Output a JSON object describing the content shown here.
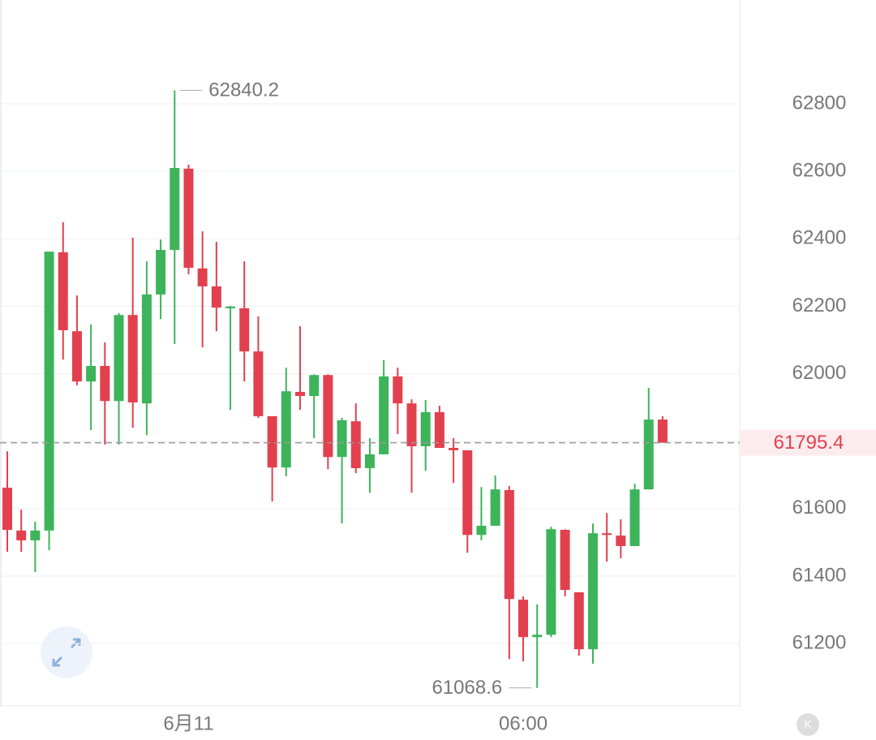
{
  "chart_data": {
    "type": "candlestick",
    "categories": [
      null,
      null,
      null,
      null,
      null,
      null,
      null,
      null,
      null,
      null,
      null,
      null,
      null,
      "6月11",
      null,
      null,
      null,
      null,
      null,
      null,
      null,
      null,
      null,
      null,
      null,
      null,
      null,
      null,
      null,
      null,
      null,
      null,
      null,
      null,
      null,
      null,
      null,
      "06:00",
      null,
      null,
      null,
      null,
      null,
      null,
      null,
      null,
      null,
      null
    ],
    "open": [
      61662,
      61535,
      61506,
      61535,
      62360,
      62126,
      61977,
      62023,
      61919,
      62174,
      61912,
      62235,
      62367,
      62608,
      62312,
      62259,
      62194,
      62194,
      62066,
      61874,
      61722,
      61946,
      61934,
      61996,
      61753,
      61859,
      61720,
      61761,
      61992,
      61912,
      61785,
      61886,
      61780,
      61773,
      61522,
      61549,
      61655,
      61330,
      61219,
      61226,
      61537,
      61352,
      61183,
      61527,
      61520,
      61489,
      61657,
      61864
    ],
    "high": [
      61770,
      61597,
      61561,
      62362,
      62449,
      62232,
      62146,
      62093,
      62180,
      62403,
      62333,
      62398,
      62840.2,
      62620,
      62422,
      62391,
      62201,
      62333,
      62170,
      61874,
      62018,
      62141,
      61998,
      61998,
      61869,
      61912,
      61809,
      62040,
      62018,
      61924,
      61922,
      61905,
      61809,
      61773,
      61664,
      61698,
      61667,
      61340,
      61316,
      61546,
      61539,
      61352,
      61556,
      61587,
      61568,
      61674,
      61958,
      61874
    ],
    "low": [
      61472,
      61472,
      61412,
      61477,
      62042,
      61966,
      61833,
      61790,
      61790,
      61840,
      61818,
      62162,
      62088,
      62295,
      62078,
      62126,
      61893,
      61977,
      61869,
      61621,
      61696,
      61893,
      61809,
      61717,
      61556,
      61705,
      61647,
      61761,
      61821,
      61647,
      61712,
      61780,
      61676,
      61469,
      61506,
      61549,
      61154,
      61147,
      61068.6,
      61219,
      61340,
      61164,
      61140,
      61443,
      61453,
      61489,
      61657,
      61795.4
    ],
    "close": [
      61537,
      61506,
      61535,
      62362,
      62129,
      61977,
      62023,
      61919,
      62174,
      61915,
      62235,
      62367,
      62610,
      62314,
      62259,
      62196,
      62199,
      62066,
      61874,
      61722,
      61948,
      61934,
      61996,
      61753,
      61862,
      61720,
      61761,
      61992,
      61912,
      61785,
      61886,
      61780,
      61773,
      61522,
      61549,
      61657,
      61332,
      61219,
      61226,
      61539,
      61359,
      61183,
      61527,
      61522,
      61489,
      61657,
      61864,
      61795.4
    ],
    "up_color": "#3db45a",
    "down_color": "#e2404e",
    "ylim": [
      61015,
      63108
    ],
    "yticks": [
      61200,
      61400,
      61600,
      61800,
      62000,
      62200,
      62400,
      62600,
      62800
    ],
    "grid": true,
    "max_label": 62840.2,
    "min_label": 61068.6,
    "last_price": 61795.4,
    "logo": "K"
  }
}
